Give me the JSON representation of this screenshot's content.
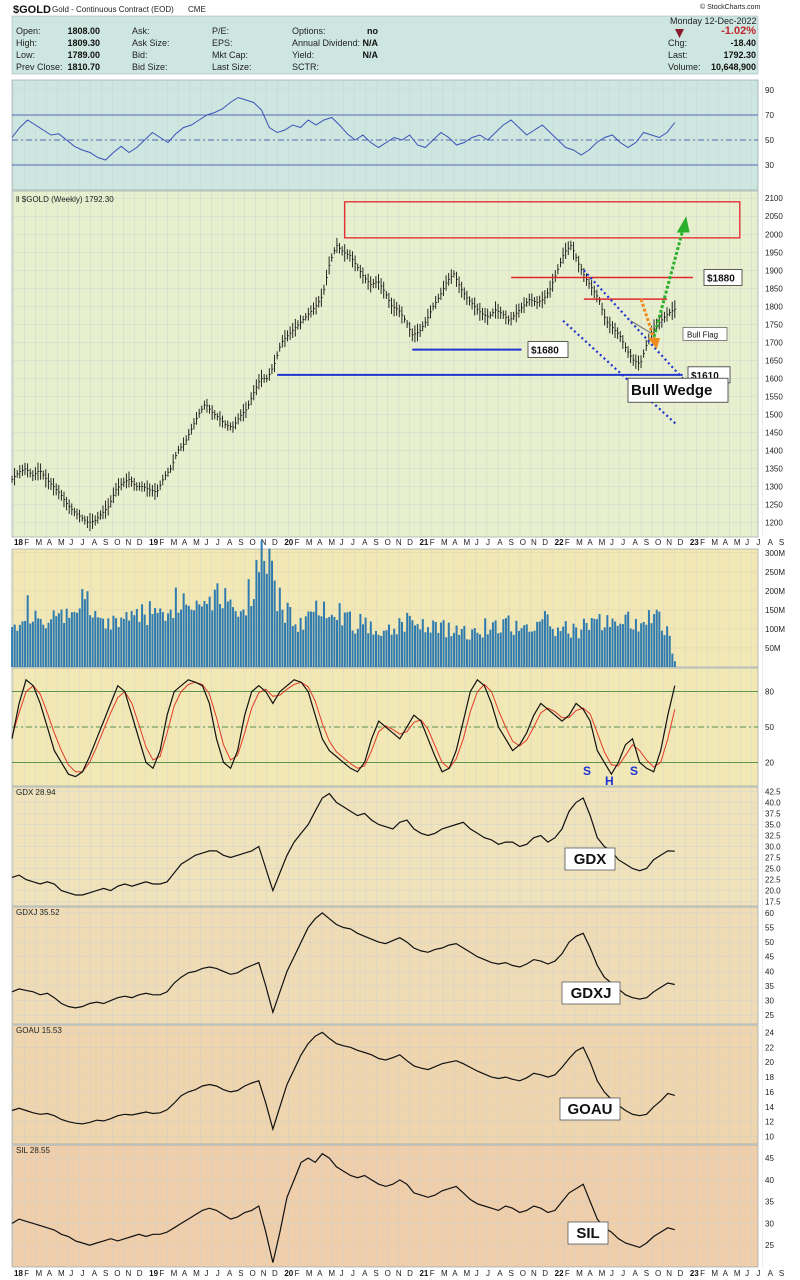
{
  "header": {
    "symbol": "$GOLD",
    "description": "Gold - Continuous Contract (EOD)",
    "exchange": "CME",
    "date": "Monday  12-Dec-2022",
    "watermark": "© StockCharts.com",
    "left_col": [
      {
        "label": "Open:",
        "value": "1808.00"
      },
      {
        "label": "High:",
        "value": "1809.30"
      },
      {
        "label": "Low:",
        "value": "1789.00"
      },
      {
        "label": "Prev Close:",
        "value": "1810.70"
      }
    ],
    "mid_col": [
      {
        "label": "Ask:",
        "value": ""
      },
      {
        "label": "Ask Size:",
        "value": ""
      },
      {
        "label": "Bid:",
        "value": ""
      },
      {
        "label": "Bid Size:",
        "value": ""
      }
    ],
    "mid2_col": [
      {
        "label": "P/E:",
        "value": ""
      },
      {
        "label": "EPS:",
        "value": ""
      },
      {
        "label": "Mkt Cap:",
        "value": ""
      },
      {
        "label": "Last Size:",
        "value": ""
      }
    ],
    "right_col": [
      {
        "label": "Options:",
        "value": "no"
      },
      {
        "label": "Annual Dividend:",
        "value": "N/A"
      },
      {
        "label": "Yield:",
        "value": "N/A"
      },
      {
        "label": "SCTR:",
        "value": ""
      }
    ],
    "quote": [
      {
        "label": "",
        "value": "-1.02%"
      },
      {
        "label": "Chg:",
        "value": "-18.40"
      },
      {
        "label": "Last:",
        "value": "1792.30"
      },
      {
        "label": "Volume:",
        "value": "10,648,900"
      }
    ],
    "colors": {
      "down": "#c0262d",
      "bg": "#cde6e0"
    }
  },
  "x_axis": {
    "years": [
      "18",
      "19",
      "20",
      "21",
      "22",
      "23"
    ],
    "months": [
      "F",
      "M",
      "A",
      "M",
      "J",
      "J",
      "A",
      "S",
      "O",
      "N",
      "D"
    ],
    "months_2023": [
      "F",
      "M",
      "A",
      "M",
      "J",
      "J",
      "A",
      "S"
    ]
  },
  "chart_data": [
    {
      "type": "line",
      "panel": "rsi",
      "y_ticks": [
        90,
        70,
        50,
        30
      ],
      "levels": [
        70,
        50,
        30
      ],
      "ylim": [
        10,
        98
      ],
      "color": "#3a53b8",
      "values": [
        52,
        60,
        66,
        62,
        58,
        54,
        55,
        50,
        45,
        42,
        40,
        36,
        34,
        40,
        45,
        40,
        44,
        50,
        56,
        52,
        48,
        55,
        60,
        62,
        66,
        70,
        72,
        75,
        80,
        84,
        82,
        80,
        74,
        60,
        56,
        58,
        62,
        60,
        66,
        62,
        66,
        68,
        62,
        55,
        50,
        54,
        48,
        44,
        48,
        52,
        50,
        54,
        46,
        44,
        50,
        56,
        52,
        46,
        48,
        52,
        54,
        50,
        56,
        62,
        66,
        60,
        54,
        58,
        62,
        56,
        50,
        44,
        42,
        38,
        42,
        48,
        52,
        54,
        48,
        44,
        48,
        56,
        54,
        52,
        56,
        64
      ]
    },
    {
      "type": "candlestick",
      "panel": "price",
      "title": "$GOLD (Weekly) 1792.30",
      "y_ticks": [
        2100,
        2050,
        2000,
        1950,
        1900,
        1850,
        1800,
        1750,
        1700,
        1650,
        1600,
        1550,
        1500,
        1450,
        1400,
        1350,
        1300,
        1250,
        1200
      ],
      "ylim": [
        1160,
        2120
      ],
      "closes": [
        1320,
        1340,
        1350,
        1330,
        1345,
        1320,
        1300,
        1280,
        1250,
        1230,
        1215,
        1200,
        1205,
        1225,
        1245,
        1290,
        1310,
        1320,
        1300,
        1300,
        1290,
        1285,
        1325,
        1350,
        1400,
        1420,
        1460,
        1500,
        1530,
        1505,
        1490,
        1470,
        1465,
        1495,
        1515,
        1560,
        1600,
        1600,
        1640,
        1700,
        1720,
        1740,
        1760,
        1780,
        1800,
        1830,
        1920,
        1970,
        1950,
        1940,
        1910,
        1880,
        1860,
        1870,
        1840,
        1800,
        1790,
        1760,
        1720,
        1730,
        1760,
        1800,
        1830,
        1870,
        1890,
        1850,
        1820,
        1800,
        1780,
        1770,
        1790,
        1780,
        1760,
        1780,
        1800,
        1820,
        1810,
        1820,
        1850,
        1900,
        1950,
        1970,
        1920,
        1880,
        1850,
        1820,
        1760,
        1740,
        1720,
        1680,
        1650,
        1640,
        1700,
        1740,
        1760,
        1780,
        1792
      ],
      "annotations": [
        {
          "label": "$1880",
          "value": 1880
        },
        {
          "label": "$1680",
          "value": 1680
        },
        {
          "label": "$1610",
          "value": 1610
        },
        {
          "label": "Bull Flag",
          "value": 1722
        },
        {
          "label": "Bull Wedge",
          "value": 1570
        }
      ],
      "colors": {
        "resistance": "#e2262d",
        "support": "#1f35d0",
        "wedge": "#1f35d0",
        "up_arrow": "#2bb02d",
        "down_arrow": "#f08c1e"
      }
    },
    {
      "type": "bar",
      "panel": "volume",
      "y_ticks": [
        "300M",
        "250M",
        "200M",
        "150M",
        "100M",
        "50M"
      ],
      "ylim": [
        0,
        310
      ],
      "color": "#2f7bb0",
      "values": [
        140,
        120,
        160,
        130,
        110,
        115,
        120,
        125,
        140,
        150,
        170,
        160,
        130,
        120,
        110,
        120,
        130,
        135,
        140,
        150,
        145,
        130,
        150,
        165,
        180,
        170,
        160,
        175,
        190,
        195,
        200,
        185,
        170,
        160,
        175,
        230,
        265,
        280,
        200,
        160,
        145,
        120,
        115,
        130,
        150,
        175,
        165,
        160,
        140,
        120,
        115,
        110,
        105,
        110,
        100,
        98,
        112,
        120,
        125,
        118,
        115,
        110,
        102,
        100,
        96,
        98,
        95,
        92,
        100,
        105,
        110,
        120,
        115,
        105,
        100,
        110,
        115,
        120,
        110,
        100,
        98,
        95,
        100,
        105,
        110,
        120,
        125,
        130,
        115,
        120,
        122,
        120,
        125,
        130,
        115,
        85,
        15
      ]
    },
    {
      "type": "line",
      "panel": "stochastic",
      "y_ticks": [
        80,
        50,
        20
      ],
      "levels": [
        80,
        50,
        20
      ],
      "ylim": [
        0,
        100
      ],
      "colors": {
        "k": "#111111",
        "d": "#e23a2a"
      },
      "series": [
        {
          "values": [
            40,
            70,
            90,
            85,
            70,
            50,
            30,
            20,
            10,
            8,
            12,
            25,
            40,
            55,
            70,
            85,
            80,
            60,
            40,
            20,
            15,
            30,
            60,
            80,
            85,
            90,
            88,
            85,
            70,
            40,
            20,
            15,
            30,
            60,
            80,
            85,
            80,
            70,
            80,
            85,
            90,
            88,
            80,
            60,
            40,
            30,
            25,
            20,
            15,
            12,
            20,
            40,
            55,
            50,
            45,
            40,
            50,
            60,
            55,
            40,
            25,
            12,
            15,
            30,
            55,
            80,
            90,
            85,
            70,
            50,
            40,
            30,
            35,
            45,
            60,
            70,
            65,
            60,
            55,
            60,
            70,
            65,
            55,
            30,
            20,
            10,
            20,
            35,
            40,
            20,
            15,
            12,
            30,
            60,
            85
          ]
        },
        {
          "values": [
            42,
            62,
            80,
            85,
            78,
            62,
            45,
            30,
            18,
            12,
            12,
            20,
            33,
            48,
            62,
            75,
            80,
            70,
            52,
            33,
            22,
            25,
            45,
            68,
            80,
            86,
            88,
            86,
            78,
            58,
            35,
            22,
            26,
            45,
            66,
            79,
            82,
            76,
            77,
            82,
            86,
            88,
            84,
            72,
            53,
            38,
            29,
            24,
            19,
            15,
            17,
            30,
            46,
            51,
            48,
            44,
            46,
            54,
            56,
            48,
            34,
            20,
            15,
            23,
            40,
            63,
            80,
            86,
            80,
            64,
            50,
            38,
            34,
            39,
            50,
            62,
            66,
            63,
            58,
            58,
            64,
            66,
            61,
            45,
            29,
            18,
            17,
            26,
            35,
            30,
            22,
            16,
            20,
            40,
            65
          ]
        }
      ],
      "annotations": [
        {
          "label": "S",
          "value": 12
        },
        {
          "label": "H",
          "value": 5
        },
        {
          "label": "S",
          "value": 12
        }
      ]
    },
    {
      "type": "line",
      "panel": "gdx",
      "title": "GDX 28.94",
      "y_ticks": [
        42.5,
        40.0,
        37.5,
        35.0,
        32.5,
        30.0,
        27.5,
        25.0,
        22.5,
        20.0,
        17.5
      ],
      "ylim": [
        16.5,
        43.5
      ],
      "color": "#111111",
      "values": [
        23,
        23.5,
        22.5,
        22,
        21.5,
        22,
        21.5,
        20,
        19.5,
        19,
        19,
        19.5,
        20,
        20.5,
        20,
        21,
        21.5,
        21,
        21.5,
        22,
        21.5,
        21.5,
        22,
        24,
        26,
        27,
        28,
        28.5,
        29,
        29,
        28,
        27.5,
        28,
        28.5,
        29,
        30,
        25,
        20,
        24,
        28,
        31,
        33,
        35,
        38,
        41,
        42,
        40,
        39,
        38,
        37,
        37.5,
        36,
        35,
        34.5,
        34,
        35.5,
        36,
        34,
        33,
        32.5,
        33,
        34,
        34.5,
        35,
        35.5,
        34,
        33,
        32,
        31.5,
        30.5,
        31,
        31,
        30,
        30.5,
        32,
        32.5,
        31,
        32,
        34,
        38,
        40,
        41,
        37,
        32,
        30,
        29,
        27,
        26,
        25,
        24.5,
        25,
        27,
        28,
        29,
        28.94
      ],
      "label": "GDX"
    },
    {
      "type": "line",
      "panel": "gdxj",
      "title": "GDXJ 35.52",
      "y_ticks": [
        60,
        55,
        50,
        45,
        40,
        35,
        30,
        25
      ],
      "ylim": [
        22,
        62
      ],
      "color": "#111111",
      "values": [
        33,
        34,
        33.5,
        33,
        32,
        32.5,
        31,
        29,
        28,
        27.5,
        28,
        29,
        29.5,
        29,
        30,
        31,
        31.5,
        31,
        32,
        32.5,
        32,
        32,
        33,
        36,
        38,
        39.5,
        40,
        41,
        41.5,
        41,
        40,
        39,
        39.5,
        41,
        42,
        43,
        35,
        26,
        33,
        40,
        45,
        50,
        55,
        58,
        60,
        58,
        56,
        55,
        54.5,
        53,
        52,
        51,
        50,
        49.5,
        50.5,
        51.5,
        50,
        48,
        47,
        46.5,
        47.5,
        48,
        49,
        49.5,
        48,
        46.5,
        45,
        44,
        43,
        42.5,
        43,
        42,
        41.5,
        42.5,
        44,
        43.5,
        42.5,
        43.5,
        46,
        50,
        52,
        53,
        48,
        42,
        38,
        36,
        34,
        32,
        31,
        30.5,
        31,
        33,
        34.5,
        36,
        35.52
      ],
      "label": "GDXJ"
    },
    {
      "type": "line",
      "panel": "goau",
      "title": "GOAU 15.53",
      "y_ticks": [
        24,
        22,
        20,
        18,
        16,
        14,
        12,
        10
      ],
      "ylim": [
        9,
        25
      ],
      "color": "#111111",
      "values": [
        13.5,
        13.8,
        13.5,
        13.2,
        13,
        13.1,
        12.8,
        12.3,
        12,
        11.8,
        11.7,
        11.9,
        12.2,
        12.1,
        12.4,
        12.8,
        13,
        12.9,
        13.1,
        13.3,
        13.1,
        13.2,
        13.6,
        14.5,
        15.5,
        16,
        16.3,
        16.8,
        17,
        16.8,
        16.3,
        16,
        16.2,
        16.8,
        17.2,
        17.5,
        14.5,
        11,
        14,
        17,
        19,
        21,
        22.5,
        23.5,
        24,
        23.2,
        22.5,
        22.2,
        22,
        21.6,
        21.3,
        21,
        20.5,
        20.3,
        20.6,
        21,
        20.2,
        19.5,
        19.2,
        19,
        19.4,
        19.8,
        20,
        20.2,
        19.8,
        19.3,
        18.8,
        18.4,
        18,
        17.8,
        18,
        17.7,
        17.5,
        17.9,
        18.5,
        18.3,
        18,
        18.3,
        19.3,
        20.5,
        21.5,
        22,
        20,
        17.5,
        16,
        15,
        14.2,
        13.5,
        13,
        12.8,
        13,
        14,
        14.8,
        15.8,
        15.53
      ],
      "label": "GOAU"
    },
    {
      "type": "line",
      "panel": "sil",
      "title": "SIL 28.55",
      "y_ticks": [
        45,
        40,
        35,
        30,
        25
      ],
      "ylim": [
        20,
        48
      ],
      "color": "#111111",
      "values": [
        30,
        31,
        30.5,
        30,
        29.5,
        29,
        28.5,
        27.5,
        27,
        26,
        25.5,
        25,
        25.5,
        26,
        26.5,
        26,
        26.5,
        27,
        27.5,
        27,
        27.5,
        27.5,
        28,
        29,
        30,
        31,
        32,
        33,
        33.5,
        33,
        32,
        31,
        31.5,
        32.5,
        33,
        34,
        28,
        21,
        28,
        36,
        40,
        44,
        45,
        44,
        46,
        45,
        43,
        42,
        41,
        40.5,
        41,
        40,
        39,
        38.5,
        39,
        40,
        39,
        37,
        36.5,
        36,
        36.5,
        37.5,
        38,
        38.5,
        37,
        35.5,
        34.5,
        34,
        33.5,
        33,
        34,
        33.5,
        32.5,
        33,
        34,
        33.5,
        32.5,
        33,
        35,
        37,
        38,
        39,
        35,
        31,
        29,
        28,
        26.5,
        25.5,
        25,
        24.5,
        25.5,
        27,
        28,
        29,
        28.55
      ],
      "label": "SIL"
    }
  ]
}
